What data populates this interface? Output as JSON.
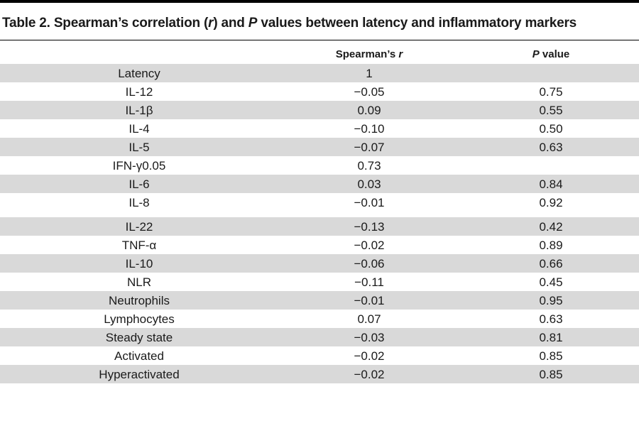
{
  "table": {
    "title_prefix": "Table 2. Spearman’s correlation (",
    "title_r": "r",
    "title_mid": ") and ",
    "title_p": "P",
    "title_suffix": " values between latency and inflammatory markers",
    "header_r_prefix": "Spearman’s ",
    "header_r_italic": "r",
    "header_p_italic": "P",
    "header_p_suffix": " value",
    "rows": [
      {
        "name": "Latency",
        "r": "1",
        "p": ""
      },
      {
        "name": "IL-12",
        "r": "−0.05",
        "p": "0.75"
      },
      {
        "name": "IL-1β",
        "r": "0.09",
        "p": "0.55"
      },
      {
        "name": "IL-4",
        "r": "−0.10",
        "p": "0.50"
      },
      {
        "name": "IL-5",
        "r": "−0.07",
        "p": "0.63"
      },
      {
        "name": "IFN-γ0.05",
        "r": "0.73",
        "p": ""
      },
      {
        "name": "IL-6",
        "r": "0.03",
        "p": "0.84"
      },
      {
        "name": "IL-8",
        "r": "−0.01",
        "p": "0.92"
      },
      {
        "name": "IL-22",
        "r": "−0.13",
        "p": "0.42"
      },
      {
        "name": "TNF-α",
        "r": "−0.02",
        "p": "0.89"
      },
      {
        "name": "IL-10",
        "r": "−0.06",
        "p": "0.66"
      },
      {
        "name": "NLR",
        "r": "−0.11",
        "p": "0.45"
      },
      {
        "name": "Neutrophils",
        "r": "−0.01",
        "p": "0.95"
      },
      {
        "name": "Lymphocytes",
        "r": "0.07",
        "p": "0.63"
      },
      {
        "name": "Steady state",
        "r": "−0.03",
        "p": "0.81"
      },
      {
        "name": "Activated",
        "r": "−0.02",
        "p": "0.85"
      },
      {
        "name": "Hyperactivated",
        "r": "−0.02",
        "p": "0.85"
      }
    ]
  }
}
